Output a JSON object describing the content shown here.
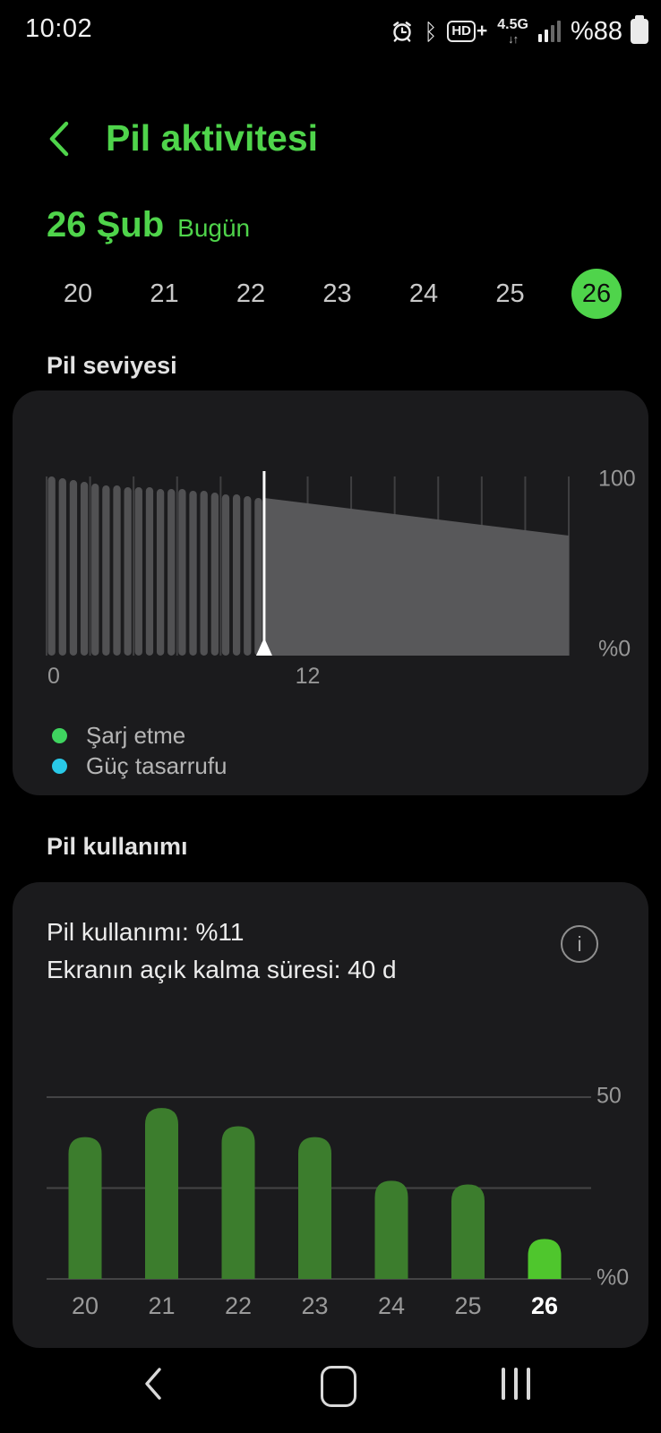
{
  "status_bar": {
    "time": "10:02",
    "alarm_icon": "alarm-icon",
    "bluetooth_icon": "bluetooth-icon",
    "volte_label": "HD",
    "volte_plus": "+",
    "network_label": "4.5G",
    "network_arrows": "↓↑",
    "signal_icon": "signal-strength-icon",
    "battery_label": "%88",
    "battery_icon": "battery-icon"
  },
  "header": {
    "title": "Pil aktivitesi"
  },
  "date": {
    "day_label": "26 Şub",
    "relative_label": "Bugün"
  },
  "day_selector": {
    "days": [
      "20",
      "21",
      "22",
      "23",
      "24",
      "25",
      "26"
    ],
    "selected_index": 6
  },
  "sections": {
    "battery_level_title": "Pil seviyesi",
    "battery_usage_title": "Pil kullanımı"
  },
  "legend": [
    {
      "label": "Şarj etme",
      "color": "#3fd45f"
    },
    {
      "label": "Güç tasarrufu",
      "color": "#29c9e8"
    }
  ],
  "usage_card": {
    "usage_line": "Pil kullanımı: %11",
    "screen_on_line": "Ekranın açık kalma süresi: 40 d",
    "info_label": "i"
  },
  "chart_data": [
    {
      "type": "area",
      "title": "Pil seviyesi",
      "ylim": [
        0,
        100
      ],
      "y_tick_labels": [
        "100",
        "%0"
      ],
      "x_range_hours": [
        0,
        24
      ],
      "x_tick_labels": [
        {
          "hour": 0,
          "label": "0"
        },
        {
          "hour": 12,
          "label": "12"
        }
      ],
      "gridline_interval_hours": 2,
      "segment_minutes": 30,
      "history_segment_values": [
        100,
        99,
        98,
        97,
        96,
        95,
        95,
        94,
        94,
        94,
        93,
        93,
        93,
        92,
        92,
        91,
        90,
        90,
        89,
        88
      ],
      "current_time_hour": 10,
      "projection": {
        "start_hour": 10,
        "start_value": 88,
        "end_hour": 24,
        "end_value": 67
      }
    },
    {
      "type": "bar",
      "title": "Pil kullanımı",
      "categories": [
        "20",
        "21",
        "22",
        "23",
        "24",
        "25",
        "26"
      ],
      "values": [
        39,
        47,
        42,
        39,
        27,
        26,
        11
      ],
      "highlight_index": 6,
      "ylim": [
        0,
        50
      ],
      "gridline_values": [
        50,
        25,
        0
      ],
      "y_tick_labels": [
        "50",
        "%0"
      ]
    }
  ],
  "colors": {
    "accent_green": "#4fd44b",
    "card_bg": "#1b1b1d",
    "history_bar": "#515153",
    "projection_fill": "#58585a",
    "gridline": "rgba(255,255,255,0.16)",
    "marker": "#ffffff",
    "usage_bar": "#3c7d2d",
    "usage_bar_highlight": "#4fc62d",
    "axis_label": "#979797",
    "cat_label": "#9a9a9a",
    "cat_label_selected": "#ffffff"
  },
  "nav_bar": {
    "back": "back-icon",
    "home": "home-icon",
    "recents": "recents-icon"
  }
}
